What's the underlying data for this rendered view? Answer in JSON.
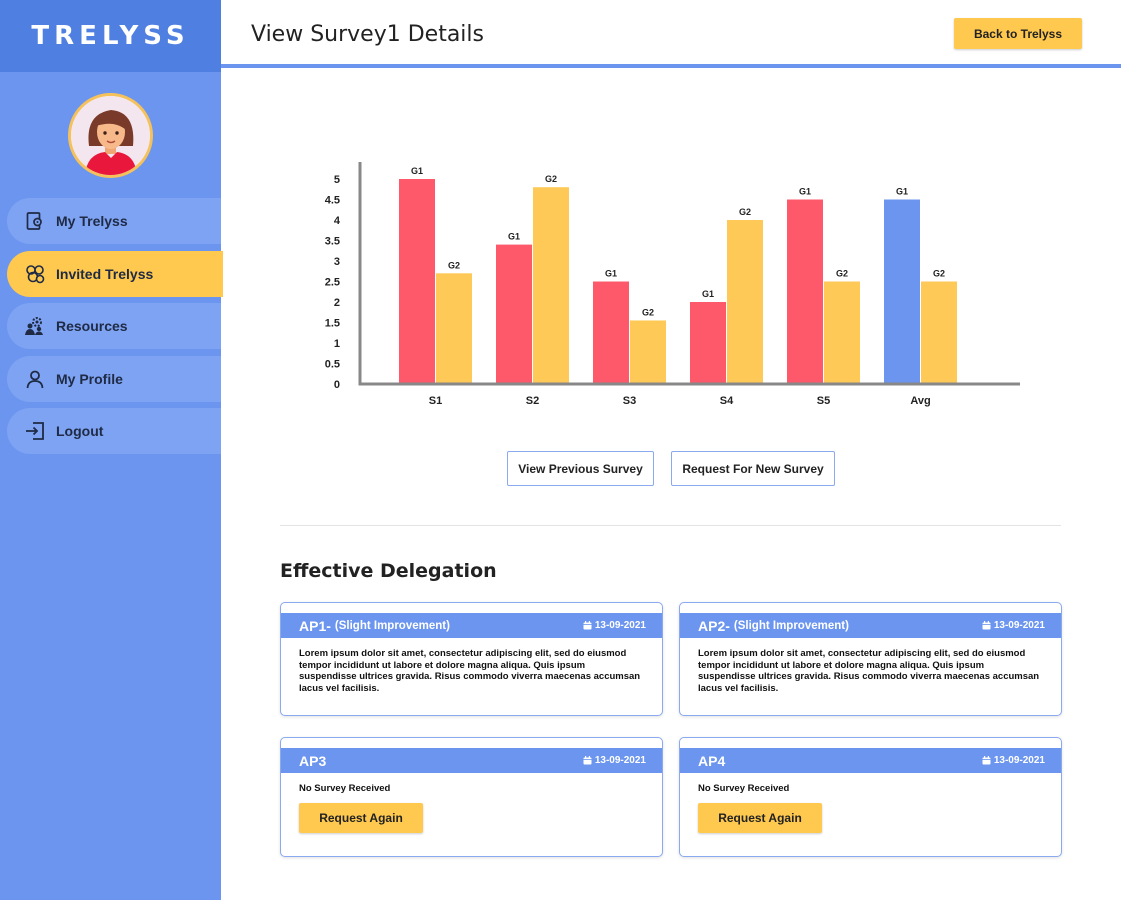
{
  "brand": "TRELYSS",
  "header": {
    "title": "View Survey1 Details",
    "back_label": "Back to Trelyss"
  },
  "sidebar": {
    "items": [
      {
        "label": "My Trelyss",
        "icon": "dashboard-gear-icon",
        "active": false
      },
      {
        "label": "Invited Trelyss",
        "icon": "group-icon",
        "active": true
      },
      {
        "label": "Resources",
        "icon": "people-gear-icon",
        "active": false
      },
      {
        "label": "My Profile",
        "icon": "user-icon",
        "active": false
      },
      {
        "label": "Logout",
        "icon": "logout-icon",
        "active": false
      }
    ]
  },
  "chart_data": {
    "type": "bar",
    "categories": [
      "S1",
      "S2",
      "S3",
      "S4",
      "S5",
      "Avg"
    ],
    "series": [
      {
        "name": "G1",
        "values": [
          5,
          3.4,
          2.5,
          2,
          4.5,
          4.5
        ]
      },
      {
        "name": "G2",
        "values": [
          2.7,
          4.8,
          1.55,
          4,
          2.5,
          2.5
        ]
      }
    ],
    "yticks": [
      "0",
      "0.5",
      "1",
      "1.5",
      "2",
      "2.5",
      "3",
      "3.5",
      "4",
      "4.5",
      "5"
    ],
    "ylim": [
      0,
      5
    ],
    "colors": {
      "G1": "#fd596b",
      "G2": "#fec957",
      "avg_G1": "#6b95ef"
    },
    "grid": false,
    "legend": "none"
  },
  "actions": {
    "prev_survey": "View Previous Survey",
    "new_survey": "Request For New Survey"
  },
  "section": {
    "title": "Effective Delegation"
  },
  "cards": [
    {
      "code": "AP1-",
      "status": "(Slight Improvement)",
      "date": "13-09-2021",
      "text": "Lorem ipsum dolor sit amet, consectetur adipiscing elit, sed do eiusmod tempor incididunt ut labore et dolore magna aliqua. Quis ipsum suspendisse ultrices gravida. Risus commodo viverra maecenas accumsan lacus vel facilisis."
    },
    {
      "code": "AP2-",
      "status": "(Slight Improvement)",
      "date": "13-09-2021",
      "text": "Lorem ipsum dolor sit amet, consectetur adipiscing elit, sed do eiusmod tempor incididunt ut labore et dolore magna aliqua. Quis ipsum suspendisse ultrices gravida. Risus commodo viverra maecenas accumsan lacus vel facilisis."
    },
    {
      "code": "AP3",
      "status": "",
      "date": "13-09-2021",
      "text": "No Survey Received",
      "button": "Request Again"
    },
    {
      "code": "AP4",
      "status": "",
      "date": "13-09-2021",
      "text": "No Survey Received",
      "button": "Request Again"
    }
  ]
}
